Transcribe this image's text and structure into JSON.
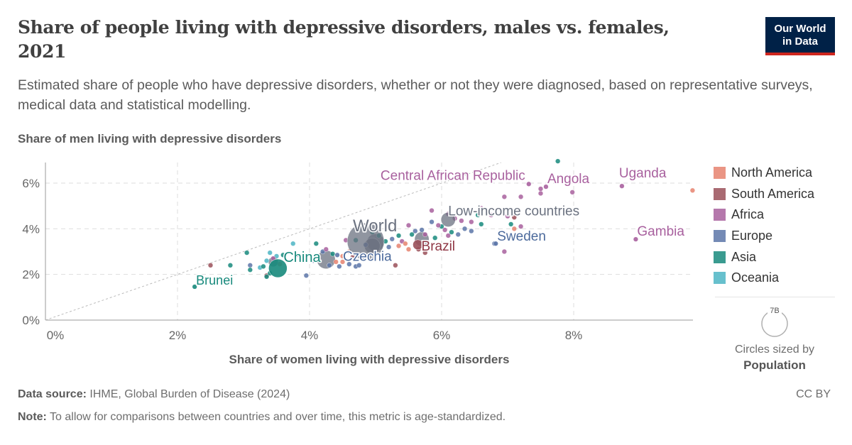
{
  "header": {
    "title": "Share of people living with depressive disorders, males vs. females, 2021",
    "subtitle": "Estimated share of people who have depressive disorders, whether or not they were diagnosed, based on representative surveys, medical data and statistical modelling.",
    "logo_line1": "Our World",
    "logo_line2": "in Data"
  },
  "legend": {
    "items": [
      {
        "label": "North America",
        "color": "#e6836f"
      },
      {
        "label": "South America",
        "color": "#9a5059"
      },
      {
        "label": "Africa",
        "color": "#a8609e"
      },
      {
        "label": "Europe",
        "color": "#5c76a8"
      },
      {
        "label": "Asia",
        "color": "#17897c"
      },
      {
        "label": "Oceania",
        "color": "#4cb5c4"
      }
    ],
    "size_max_label": "7B",
    "size_caption": "Circles sized by",
    "size_variable": "Population"
  },
  "footer": {
    "source_label": "Data source:",
    "source_text": "IHME, Global Burden of Disease (2024)",
    "note_label": "Note:",
    "note_text": "To allow for comparisons between countries and over time, this metric is age-standardized.",
    "license": "CC BY"
  },
  "chart_data": {
    "type": "scatter",
    "title": "Share of people living with depressive disorders, males vs. females, 2021",
    "xlabel": "Share of women living with depressive disorders",
    "ylabel": "Share of men living with depressive disorders",
    "xlim": [
      0,
      9.8
    ],
    "ylim": [
      0,
      6.9
    ],
    "xticks": [
      0,
      2,
      4,
      6,
      8
    ],
    "yticks": [
      0,
      2,
      4,
      6
    ],
    "xtick_labels": [
      "0%",
      "2%",
      "4%",
      "6%",
      "8%"
    ],
    "ytick_labels": [
      "0%",
      "2%",
      "4%",
      "6%"
    ],
    "grid": true,
    "reference_line": "y = x (dotted)",
    "legend_position": "right",
    "region_colors": {
      "North America": "#e6836f",
      "South America": "#9a5059",
      "Africa": "#a8609e",
      "Europe": "#5c76a8",
      "Asia": "#17897c",
      "Oceania": "#4cb5c4",
      "Aggregate": "#6b7280"
    },
    "labeled_points": [
      {
        "name": "World",
        "region": "Aggregate",
        "x": 4.85,
        "y": 3.45,
        "size": 7.9,
        "label_color": "#6b7280"
      },
      {
        "name": "China",
        "region": "Asia",
        "x": 3.52,
        "y": 2.27,
        "size": 1.4,
        "label_color": "#17897c"
      },
      {
        "name": "Brunei",
        "region": "Asia",
        "x": 2.26,
        "y": 1.46,
        "size": 0.0005,
        "label_color": "#17897c"
      },
      {
        "name": "Czechia",
        "region": "Europe",
        "x": 4.42,
        "y": 2.85,
        "size": 0.01,
        "label_color": "#4c6a9c"
      },
      {
        "name": "Brazil",
        "region": "South America",
        "x": 5.64,
        "y": 3.3,
        "size": 0.21,
        "label_color": "#8e3543"
      },
      {
        "name": "Low-income countries",
        "region": "Aggregate",
        "x": 6.1,
        "y": 4.4,
        "size": 0.7,
        "label_color": "#6b7280"
      },
      {
        "name": "Sweden",
        "region": "Europe",
        "x": 6.82,
        "y": 3.35,
        "size": 0.01,
        "label_color": "#4c6a9c"
      },
      {
        "name": "Central African Republic",
        "region": "Africa",
        "x": 7.32,
        "y": 5.96,
        "size": 0.005,
        "label_color": "#a8609e"
      },
      {
        "name": "Angola",
        "region": "Africa",
        "x": 7.58,
        "y": 5.84,
        "size": 0.035,
        "label_color": "#a8609e"
      },
      {
        "name": "Uganda",
        "region": "Africa",
        "x": 8.73,
        "y": 5.87,
        "size": 0.047,
        "label_color": "#a8609e"
      },
      {
        "name": "Gambia",
        "region": "Africa",
        "x": 8.94,
        "y": 3.54,
        "size": 0.0027,
        "label_color": "#a8609e"
      }
    ],
    "aggregate_points": [
      {
        "x": 4.25,
        "y": 2.65,
        "size": 1.4
      },
      {
        "x": 5.0,
        "y": 3.4,
        "size": 1.2
      },
      {
        "x": 5.7,
        "y": 3.55,
        "size": 0.7
      },
      {
        "x": 3.45,
        "y": 2.55,
        "size": 0.2
      },
      {
        "x": 4.95,
        "y": 3.25,
        "size": 0.9
      }
    ],
    "points": [
      {
        "region": "Asia",
        "x": 7.76,
        "y": 6.96
      },
      {
        "region": "North America",
        "x": 9.8,
        "y": 5.68
      },
      {
        "region": "Africa",
        "x": 7.5,
        "y": 5.55
      },
      {
        "region": "Africa",
        "x": 7.5,
        "y": 5.75
      },
      {
        "region": "Africa",
        "x": 7.98,
        "y": 5.6
      },
      {
        "region": "Africa",
        "x": 7.2,
        "y": 5.4
      },
      {
        "region": "Africa",
        "x": 6.95,
        "y": 5.4
      },
      {
        "region": "Africa",
        "x": 5.85,
        "y": 4.8
      },
      {
        "region": "Africa",
        "x": 6.6,
        "y": 4.9
      },
      {
        "region": "Africa",
        "x": 6.1,
        "y": 4.65
      },
      {
        "region": "Africa",
        "x": 6.75,
        "y": 4.6
      },
      {
        "region": "Africa",
        "x": 7.0,
        "y": 4.55
      },
      {
        "region": "South America",
        "x": 7.1,
        "y": 4.5
      },
      {
        "region": "Asia",
        "x": 7.05,
        "y": 4.2
      },
      {
        "region": "North America",
        "x": 7.1,
        "y": 4.0
      },
      {
        "region": "Africa",
        "x": 7.2,
        "y": 4.1
      },
      {
        "region": "Asia",
        "x": 6.6,
        "y": 4.2
      },
      {
        "region": "Asia",
        "x": 6.55,
        "y": 4.6
      },
      {
        "region": "Africa",
        "x": 6.95,
        "y": 3.0
      },
      {
        "region": "Europe",
        "x": 6.8,
        "y": 3.35
      },
      {
        "region": "Africa",
        "x": 6.3,
        "y": 4.35
      },
      {
        "region": "Africa",
        "x": 6.2,
        "y": 4.45
      },
      {
        "region": "Africa",
        "x": 6.45,
        "y": 4.3
      },
      {
        "region": "Europe",
        "x": 6.35,
        "y": 4.0
      },
      {
        "region": "Europe",
        "x": 6.45,
        "y": 3.9
      },
      {
        "region": "Asia",
        "x": 6.0,
        "y": 4.1
      },
      {
        "region": "Africa",
        "x": 5.95,
        "y": 4.15
      },
      {
        "region": "Europe",
        "x": 5.85,
        "y": 4.3
      },
      {
        "region": "Africa",
        "x": 6.05,
        "y": 3.95
      },
      {
        "region": "Asia",
        "x": 6.15,
        "y": 3.85
      },
      {
        "region": "Europe",
        "x": 6.25,
        "y": 3.75
      },
      {
        "region": "Africa",
        "x": 6.1,
        "y": 3.7
      },
      {
        "region": "Asia",
        "x": 5.9,
        "y": 3.6
      },
      {
        "region": "Africa",
        "x": 5.75,
        "y": 3.75
      },
      {
        "region": "Europe",
        "x": 5.6,
        "y": 3.9
      },
      {
        "region": "Asia",
        "x": 5.55,
        "y": 3.75
      },
      {
        "region": "Europe",
        "x": 5.7,
        "y": 3.95
      },
      {
        "region": "Africa",
        "x": 5.5,
        "y": 4.15
      },
      {
        "region": "Asia",
        "x": 5.35,
        "y": 3.7
      },
      {
        "region": "Europe",
        "x": 5.25,
        "y": 3.55
      },
      {
        "region": "Africa",
        "x": 5.4,
        "y": 3.45
      },
      {
        "region": "North America",
        "x": 5.35,
        "y": 3.25
      },
      {
        "region": "North America",
        "x": 5.5,
        "y": 3.1
      },
      {
        "region": "South America",
        "x": 5.65,
        "y": 3.1
      },
      {
        "region": "South America",
        "x": 5.75,
        "y": 2.95
      },
      {
        "region": "North America",
        "x": 5.45,
        "y": 3.35
      },
      {
        "region": "Europe",
        "x": 5.2,
        "y": 3.2
      },
      {
        "region": "Asia",
        "x": 5.15,
        "y": 3.45
      },
      {
        "region": "Africa",
        "x": 4.55,
        "y": 3.5
      },
      {
        "region": "Asia",
        "x": 4.7,
        "y": 3.5
      },
      {
        "region": "Asia",
        "x": 4.95,
        "y": 3.85
      },
      {
        "region": "Asia",
        "x": 5.05,
        "y": 3.7
      },
      {
        "region": "Europe",
        "x": 4.85,
        "y": 3.3
      },
      {
        "region": "North America",
        "x": 4.6,
        "y": 3.0
      },
      {
        "region": "North America",
        "x": 4.5,
        "y": 2.8
      },
      {
        "region": "South America",
        "x": 4.65,
        "y": 2.75
      },
      {
        "region": "North America",
        "x": 4.4,
        "y": 2.55
      },
      {
        "region": "Europe",
        "x": 4.3,
        "y": 2.4
      },
      {
        "region": "Europe",
        "x": 4.45,
        "y": 2.35
      },
      {
        "region": "Europe",
        "x": 4.6,
        "y": 2.45
      },
      {
        "region": "Europe",
        "x": 4.7,
        "y": 2.35
      },
      {
        "region": "North America",
        "x": 4.5,
        "y": 2.55
      },
      {
        "region": "Asia",
        "x": 4.35,
        "y": 2.9
      },
      {
        "region": "Europe",
        "x": 4.2,
        "y": 3.0
      },
      {
        "region": "Europe",
        "x": 4.05,
        "y": 2.6
      },
      {
        "region": "Asia",
        "x": 4.1,
        "y": 3.35
      },
      {
        "region": "Africa",
        "x": 4.25,
        "y": 3.1
      },
      {
        "region": "Oceania",
        "x": 3.75,
        "y": 3.35
      },
      {
        "region": "Oceania",
        "x": 3.5,
        "y": 2.8
      },
      {
        "region": "Asia",
        "x": 3.6,
        "y": 2.85
      },
      {
        "region": "Oceania",
        "x": 3.4,
        "y": 2.95
      },
      {
        "region": "Africa",
        "x": 3.45,
        "y": 2.7
      },
      {
        "region": "Oceania",
        "x": 3.35,
        "y": 2.6
      },
      {
        "region": "North America",
        "x": 3.55,
        "y": 2.45
      },
      {
        "region": "Oceania",
        "x": 3.25,
        "y": 2.3
      },
      {
        "region": "Asia",
        "x": 3.3,
        "y": 2.35
      },
      {
        "region": "Asia",
        "x": 3.05,
        "y": 2.95
      },
      {
        "region": "South America",
        "x": 3.35,
        "y": 1.95
      },
      {
        "region": "Asia",
        "x": 3.4,
        "y": 2.05
      },
      {
        "region": "Asia",
        "x": 3.35,
        "y": 1.9
      },
      {
        "region": "Europe",
        "x": 3.1,
        "y": 2.4
      },
      {
        "region": "Asia",
        "x": 3.1,
        "y": 2.2
      },
      {
        "region": "Asia",
        "x": 2.8,
        "y": 2.4
      },
      {
        "region": "South America",
        "x": 2.5,
        "y": 2.4
      },
      {
        "region": "Europe",
        "x": 3.95,
        "y": 1.95
      },
      {
        "region": "South America",
        "x": 5.3,
        "y": 2.4
      },
      {
        "region": "Europe",
        "x": 4.75,
        "y": 2.4
      },
      {
        "region": "Africa",
        "x": 3.8,
        "y": 2.85
      }
    ]
  }
}
